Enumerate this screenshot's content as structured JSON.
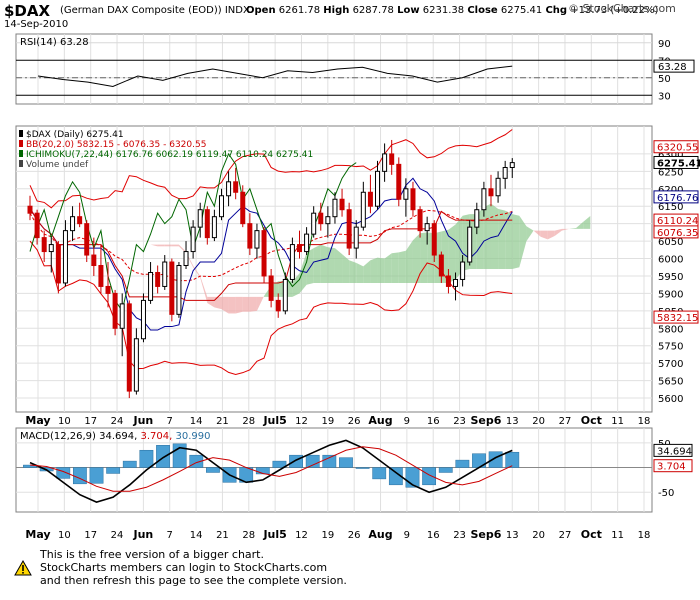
{
  "header": {
    "symbol": "$DAX",
    "description": "(German DAX Composite (EOD))",
    "exchange": "INDX",
    "date": "14-Sep-2010",
    "open_label": "Open",
    "open": "6261.78",
    "high_label": "High",
    "high": "6287.78",
    "low_label": "Low",
    "low": "6231.38",
    "close_label": "Close",
    "close": "6275.41",
    "chg_label": "Chg",
    "chg": "+13.73 (+0.22%)",
    "brand": "© StockCharts.com"
  },
  "footer": {
    "line1": "This is the free version of a bigger chart.",
    "line2": "StockCharts members can login to StockCharts.com",
    "line3": "and then refresh this page to see the complete version."
  },
  "chart_data": [
    {
      "type": "line",
      "panel": "rsi",
      "legend": "RSI(14) 63.28",
      "current": 63.28,
      "ylim": [
        20,
        100
      ],
      "ticks": [
        90,
        70,
        50,
        30
      ],
      "reference_lines": [
        70,
        30
      ],
      "x": [
        "May-03",
        "May-10",
        "May-17",
        "May-24",
        "Jun-01",
        "Jun-07",
        "Jun-14",
        "Jun-21",
        "Jun-28",
        "Jul-05",
        "Jul-12",
        "Jul-19",
        "Jul-26",
        "Aug-02",
        "Aug-09",
        "Aug-16",
        "Aug-23",
        "Sep-01",
        "Sep-06",
        "Sep-13"
      ],
      "values": [
        52,
        48,
        45,
        40,
        52,
        47,
        55,
        60,
        55,
        50,
        58,
        56,
        60,
        62,
        55,
        52,
        45,
        50,
        60,
        63.28
      ]
    },
    {
      "type": "candlestick",
      "panel": "price",
      "legend": [
        "$DAX (Daily) 6275.41",
        "BB(20,2.0) 5832.15 - 6076.35 - 6320.55",
        "ICHIMOKU(7,22,44) 6176.76 6062.19 6119.47 6110.24 6275.41",
        "Volume undef"
      ],
      "ylim": [
        5560,
        6380
      ],
      "ticks": [
        6300,
        6250,
        6200,
        6150,
        6100,
        6050,
        6000,
        5950,
        5900,
        5850,
        5800,
        5750,
        5700,
        5650,
        5600
      ],
      "price_labels": [
        {
          "text": "6320.55",
          "value": 6320.55,
          "color": "#cc0000"
        },
        {
          "text": "6275.41",
          "value": 6275.41,
          "color": "#000000"
        },
        {
          "text": "6176.76",
          "value": 6176.76,
          "color": "#000080"
        },
        {
          "text": "6110.24",
          "value": 6110.24,
          "color": "#cc0000"
        },
        {
          "text": "6076.35",
          "value": 6076.35,
          "color": "#cc0000"
        },
        {
          "text": "5832.15",
          "value": 5832.15,
          "color": "#cc0000"
        }
      ],
      "x_labels": [
        "May",
        "10",
        "17",
        "24",
        "Jun",
        "7",
        "14",
        "21",
        "28",
        "Jul5",
        "12",
        "19",
        "26",
        "Aug",
        "9",
        "16",
        "23",
        "Sep6",
        "13",
        "20",
        "27",
        "Oct",
        "11",
        "18"
      ],
      "ohlc": [
        [
          6150,
          6180,
          6110,
          6130
        ],
        [
          6130,
          6140,
          6040,
          6060
        ],
        [
          6060,
          6080,
          5990,
          6020
        ],
        [
          6020,
          6060,
          5960,
          6040
        ],
        [
          6040,
          6050,
          5900,
          5930
        ],
        [
          5930,
          6110,
          5920,
          6080
        ],
        [
          6080,
          6150,
          6050,
          6120
        ],
        [
          6120,
          6160,
          6090,
          6100
        ],
        [
          6100,
          6110,
          5990,
          6010
        ],
        [
          6010,
          6060,
          5950,
          5980
        ],
        [
          5980,
          6040,
          5900,
          5920
        ],
        [
          5920,
          5990,
          5860,
          5900
        ],
        [
          5900,
          5910,
          5780,
          5800
        ],
        [
          5800,
          5900,
          5720,
          5870
        ],
        [
          5870,
          5880,
          5600,
          5620
        ],
        [
          5620,
          5800,
          5610,
          5770
        ],
        [
          5770,
          5900,
          5760,
          5880
        ],
        [
          5880,
          5990,
          5870,
          5960
        ],
        [
          5960,
          5980,
          5900,
          5920
        ],
        [
          5920,
          6010,
          5910,
          5990
        ],
        [
          5990,
          6000,
          5820,
          5840
        ],
        [
          5840,
          5990,
          5830,
          5980
        ],
        [
          5980,
          6050,
          5970,
          6020
        ],
        [
          6020,
          6110,
          6000,
          6090
        ],
        [
          6090,
          6160,
          6060,
          6140
        ],
        [
          6140,
          6150,
          6040,
          6060
        ],
        [
          6060,
          6140,
          6050,
          6120
        ],
        [
          6120,
          6200,
          6110,
          6180
        ],
        [
          6180,
          6250,
          6150,
          6220
        ],
        [
          6220,
          6260,
          6170,
          6190
        ],
        [
          6190,
          6210,
          6090,
          6100
        ],
        [
          6100,
          6130,
          6010,
          6030
        ],
        [
          6030,
          6100,
          6000,
          6080
        ],
        [
          6080,
          6090,
          5930,
          5950
        ],
        [
          5950,
          5970,
          5860,
          5880
        ],
        [
          5880,
          5900,
          5830,
          5850
        ],
        [
          5850,
          5960,
          5840,
          5940
        ],
        [
          5940,
          6060,
          5930,
          6040
        ],
        [
          6040,
          6080,
          6000,
          6020
        ],
        [
          6020,
          6090,
          6010,
          6070
        ],
        [
          6070,
          6150,
          6060,
          6130
        ],
        [
          6130,
          6160,
          6080,
          6100
        ],
        [
          6100,
          6150,
          6060,
          6120
        ],
        [
          6120,
          6190,
          6100,
          6170
        ],
        [
          6170,
          6200,
          6120,
          6140
        ],
        [
          6140,
          6160,
          6010,
          6030
        ],
        [
          6030,
          6110,
          6000,
          6090
        ],
        [
          6090,
          6220,
          6080,
          6190
        ],
        [
          6190,
          6240,
          6130,
          6150
        ],
        [
          6150,
          6280,
          6140,
          6250
        ],
        [
          6250,
          6330,
          6220,
          6300
        ],
        [
          6300,
          6340,
          6240,
          6270
        ],
        [
          6270,
          6290,
          6150,
          6170
        ],
        [
          6170,
          6230,
          6120,
          6200
        ],
        [
          6200,
          6220,
          6120,
          6140
        ],
        [
          6140,
          6150,
          6060,
          6080
        ],
        [
          6080,
          6120,
          6040,
          6100
        ],
        [
          6100,
          6110,
          5990,
          6010
        ],
        [
          6010,
          6020,
          5930,
          5950
        ],
        [
          5950,
          5970,
          5900,
          5920
        ],
        [
          5920,
          5960,
          5880,
          5940
        ],
        [
          5940,
          6010,
          5920,
          5990
        ],
        [
          5990,
          6110,
          5980,
          6090
        ],
        [
          6090,
          6160,
          6070,
          6140
        ],
        [
          6140,
          6220,
          6120,
          6200
        ],
        [
          6200,
          6240,
          6150,
          6180
        ],
        [
          6180,
          6250,
          6160,
          6230
        ],
        [
          6230,
          6280,
          6200,
          6261
        ],
        [
          6261,
          6288,
          6231,
          6275
        ]
      ],
      "ichimoku_cloud_future_label": "cloud"
    },
    {
      "type": "line",
      "panel": "macd",
      "legend": {
        "name": "MACD(12,26,9)",
        "macd": "34.694",
        "signal": "3.704",
        "histogram": "30.990"
      },
      "ylim": [
        -90,
        80
      ],
      "ticks": [
        50,
        0,
        -50
      ],
      "value_labels": [
        {
          "text": "34.694",
          "value": 34.694,
          "color": "#000000"
        },
        {
          "text": "3.704",
          "value": 3.704,
          "color": "#cc0000"
        }
      ],
      "series": [
        {
          "name": "MACD",
          "color": "#000000",
          "values": [
            10,
            -5,
            -30,
            -55,
            -70,
            -60,
            -35,
            -5,
            20,
            40,
            35,
            10,
            -15,
            -30,
            -25,
            -5,
            15,
            30,
            45,
            55,
            40,
            15,
            -10,
            -35,
            -50,
            -40,
            -20,
            0,
            20,
            34.694
          ]
        },
        {
          "name": "Signal",
          "color": "#cc0000",
          "values": [
            5,
            2,
            -8,
            -22,
            -38,
            -48,
            -48,
            -40,
            -25,
            -8,
            10,
            20,
            15,
            0,
            -12,
            -18,
            -10,
            5,
            20,
            35,
            42,
            38,
            25,
            5,
            -15,
            -30,
            -35,
            -28,
            -12,
            3.704
          ]
        }
      ],
      "histogram": [
        5,
        -7,
        -22,
        -33,
        -32,
        -12,
        13,
        35,
        45,
        48,
        25,
        -10,
        -30,
        -30,
        -13,
        13,
        25,
        25,
        25,
        20,
        -2,
        -23,
        -35,
        -40,
        -35,
        -10,
        15,
        28,
        32,
        30.99
      ]
    }
  ]
}
